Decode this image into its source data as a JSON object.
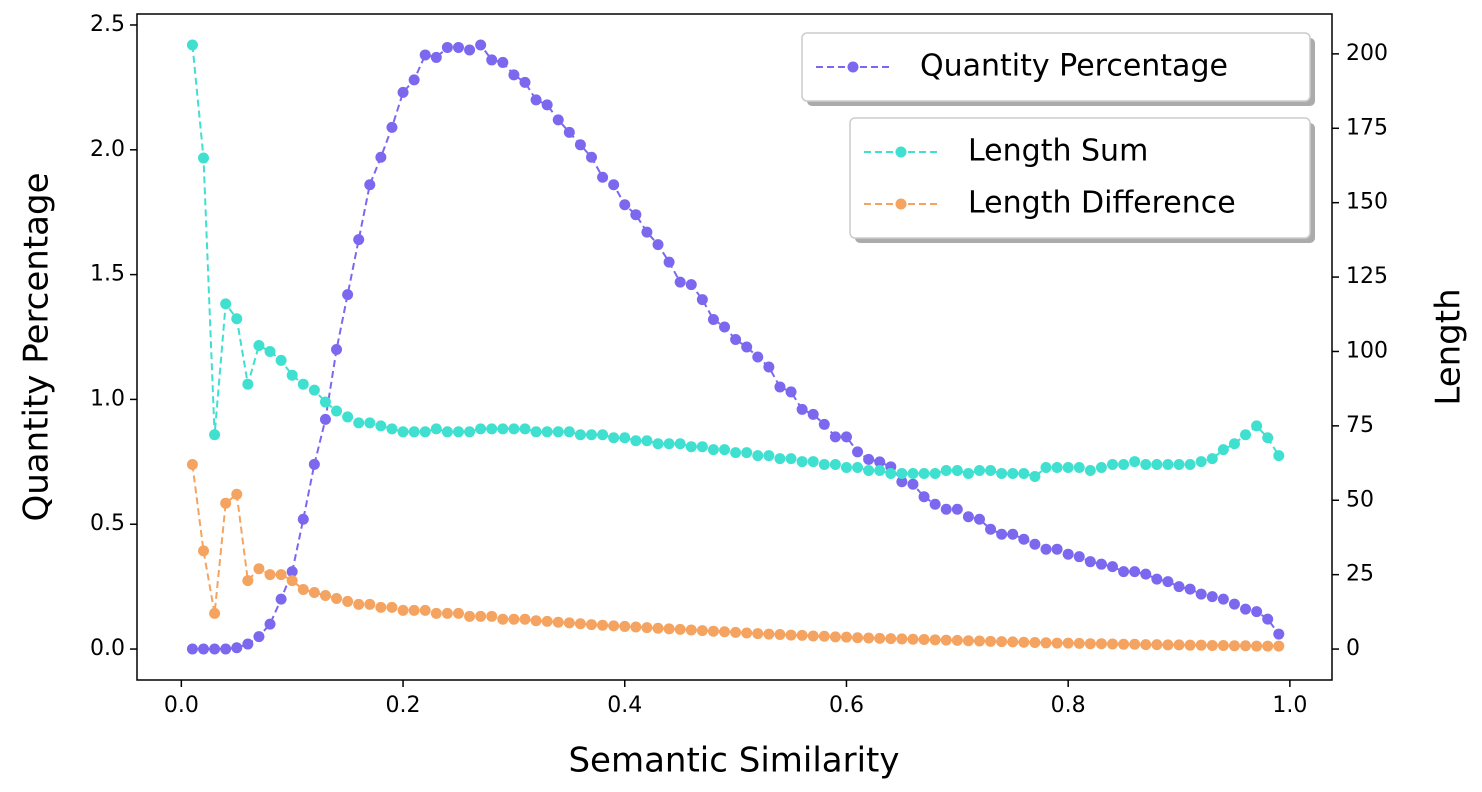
{
  "chart_data": {
    "type": "line",
    "xlabel": "Semantic Similarity",
    "ylabel": "Quantity Percentage",
    "y2label": "Length",
    "x": [
      0.01,
      0.02,
      0.03,
      0.04,
      0.05,
      0.06,
      0.07,
      0.08,
      0.09,
      0.1,
      0.11,
      0.12,
      0.13,
      0.14,
      0.15,
      0.16,
      0.17,
      0.18,
      0.19,
      0.2,
      0.21,
      0.22,
      0.23,
      0.24,
      0.25,
      0.26,
      0.27,
      0.28,
      0.29,
      0.3,
      0.31,
      0.32,
      0.33,
      0.34,
      0.35,
      0.36,
      0.37,
      0.38,
      0.39,
      0.4,
      0.41,
      0.42,
      0.43,
      0.44,
      0.45,
      0.46,
      0.47,
      0.48,
      0.49,
      0.5,
      0.51,
      0.52,
      0.53,
      0.54,
      0.55,
      0.56,
      0.57,
      0.58,
      0.59,
      0.6,
      0.61,
      0.62,
      0.63,
      0.64,
      0.65,
      0.66,
      0.67,
      0.68,
      0.69,
      0.7,
      0.71,
      0.72,
      0.73,
      0.74,
      0.75,
      0.76,
      0.77,
      0.78,
      0.79,
      0.8,
      0.81,
      0.82,
      0.83,
      0.84,
      0.85,
      0.86,
      0.87,
      0.88,
      0.89,
      0.9,
      0.91,
      0.92,
      0.93,
      0.94,
      0.95,
      0.96,
      0.97,
      0.98,
      0.99
    ],
    "series": [
      {
        "name": "Quantity Percentage",
        "color": "#7b68ee",
        "axis": "y",
        "values": [
          0,
          0,
          0,
          0,
          0.005,
          0.02,
          0.05,
          0.1,
          0.2,
          0.31,
          0.52,
          0.74,
          0.92,
          1.2,
          1.42,
          1.64,
          1.86,
          1.97,
          2.09,
          2.23,
          2.28,
          2.38,
          2.37,
          2.41,
          2.41,
          2.4,
          2.42,
          2.36,
          2.35,
          2.3,
          2.27,
          2.2,
          2.18,
          2.12,
          2.07,
          2.02,
          1.97,
          1.89,
          1.86,
          1.78,
          1.74,
          1.67,
          1.62,
          1.55,
          1.47,
          1.46,
          1.4,
          1.32,
          1.29,
          1.24,
          1.21,
          1.17,
          1.13,
          1.05,
          1.03,
          0.96,
          0.94,
          0.9,
          0.85,
          0.85,
          0.79,
          0.76,
          0.75,
          0.73,
          0.67,
          0.66,
          0.61,
          0.58,
          0.56,
          0.56,
          0.53,
          0.52,
          0.48,
          0.46,
          0.46,
          0.44,
          0.42,
          0.4,
          0.4,
          0.38,
          0.37,
          0.35,
          0.34,
          0.33,
          0.31,
          0.31,
          0.3,
          0.28,
          0.27,
          0.25,
          0.24,
          0.22,
          0.21,
          0.2,
          0.18,
          0.16,
          0.15,
          0.12,
          0.06
        ]
      },
      {
        "name": "Length Sum",
        "color": "#40e0d0",
        "axis": "y2",
        "values": [
          203,
          165,
          72,
          116,
          111,
          89,
          102,
          100,
          97,
          92,
          89,
          87,
          83,
          80,
          78,
          76,
          76,
          75,
          74,
          73,
          73,
          73,
          74,
          73,
          73,
          73,
          74,
          74,
          74,
          74,
          74,
          73,
          73,
          73,
          73,
          72,
          72,
          72,
          71,
          71,
          70,
          70,
          69,
          69,
          69,
          68,
          68,
          67,
          67,
          66,
          66,
          65,
          65,
          64,
          64,
          63,
          63,
          62,
          62,
          61,
          61,
          60,
          60,
          59,
          59,
          59,
          59,
          59,
          60,
          60,
          59,
          60,
          60,
          59,
          59,
          59,
          58,
          61,
          61,
          61,
          61,
          60,
          61,
          62,
          62,
          63,
          62,
          62,
          62,
          62,
          62,
          63,
          64,
          67,
          69,
          72,
          75,
          71,
          65
        ]
      },
      {
        "name": "Length Difference",
        "color": "#f4a460",
        "axis": "y2",
        "values": [
          62,
          33,
          12,
          49,
          52,
          23,
          27,
          25,
          25,
          23,
          20,
          19,
          18,
          17,
          16,
          15,
          15,
          14,
          14,
          13,
          13,
          13,
          12,
          12,
          12,
          11,
          11,
          11,
          10,
          10,
          10,
          9.5,
          9.3,
          9,
          8.8,
          8.5,
          8.2,
          8,
          7.8,
          7.6,
          7.4,
          7.2,
          7,
          6.8,
          6.6,
          6.4,
          6.2,
          6,
          5.8,
          5.6,
          5.4,
          5.2,
          5,
          4.9,
          4.7,
          4.6,
          4.4,
          4.3,
          4.1,
          4,
          3.8,
          3.7,
          3.6,
          3.5,
          3.4,
          3.3,
          3.2,
          3.1,
          3,
          2.9,
          2.8,
          2.7,
          2.6,
          2.5,
          2.4,
          2.3,
          2.2,
          2.1,
          2,
          2,
          1.9,
          1.8,
          1.8,
          1.7,
          1.6,
          1.6,
          1.5,
          1.5,
          1.4,
          1.4,
          1.3,
          1.3,
          1.2,
          1.2,
          1.1,
          1.1,
          1,
          1,
          1
        ]
      }
    ],
    "xlim": [
      -0.04,
      1.038
    ],
    "xticks": [
      {
        "value": 0,
        "label": "0.0"
      },
      0.2,
      0.4,
      0.6,
      0.8,
      {
        "value": 1,
        "label": "1.0"
      }
    ],
    "ylim": [
      -0.124,
      2.544
    ],
    "yticks": [
      {
        "value": 0,
        "label": "0.0"
      },
      0.5,
      {
        "value": 1,
        "label": "1.0"
      },
      1.5,
      {
        "value": 2,
        "label": "2.0"
      },
      2.5
    ],
    "y2lim": [
      -10.4,
      213.4
    ],
    "y2ticks": [
      0,
      25,
      50,
      75,
      100,
      125,
      150,
      175,
      200
    ],
    "legend": "upper right",
    "grid": false
  }
}
